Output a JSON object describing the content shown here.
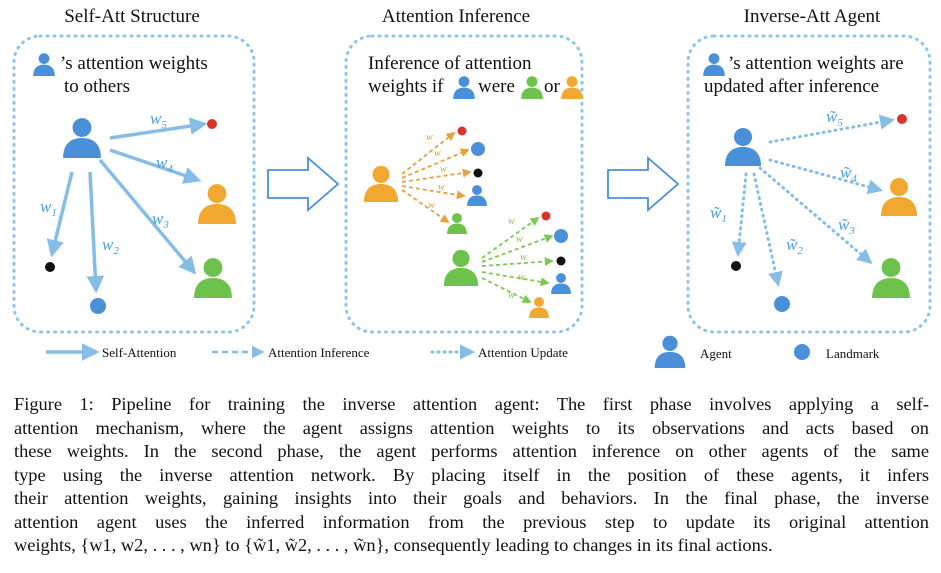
{
  "panels": [
    {
      "title": "Self-Att Structure",
      "desc_lines": [
        "’s attention weights",
        "to others"
      ],
      "weights": [
        "w",
        "w",
        "w",
        "w",
        "w"
      ],
      "subscripts": [
        "5",
        "4",
        "3",
        "1",
        "2"
      ]
    },
    {
      "title": "Attention Inference",
      "desc_line1": "Inference of attention",
      "desc_line2_parts": [
        "weights  if",
        "were",
        "or"
      ]
    },
    {
      "title": "Inverse-Att Agent",
      "desc_lines": [
        "’s attention weights are",
        "updated after inference"
      ],
      "weights": [
        "w̃",
        "w̃",
        "w̃",
        "w̃",
        "w̃"
      ],
      "subscripts": [
        "5",
        "4",
        "3",
        "1",
        "2"
      ]
    }
  ],
  "small_weight_label": "w",
  "legend": {
    "self_attention": "Self-Attention",
    "attention_inference": "Attention Inference",
    "attention_update": "Attention Update",
    "agent": "Agent",
    "landmark": "Landmark"
  },
  "colors": {
    "blue": "#4a90d9",
    "orange": "#f0a830",
    "green": "#6cc24a",
    "red": "#d9342b",
    "black": "#111111",
    "arrow": "#85bde6",
    "dashed_orange": "#e8a040",
    "dashed_green": "#7cc850",
    "border": "#8cc4ea"
  },
  "caption_lines": [
    "Figure 1: Pipeline for training the inverse attention agent: The first phase involves applying a self-",
    "attention mechanism, where the agent assigns attention weights to its observations and acts based on",
    "these weights. In the second phase, the agent performs attention inference on other agents of the same",
    "type using the inverse attention network. By placing itself in the position of these agents, it infers",
    "their attention weights, gaining insights into their goals and behaviors. In the final phase, the inverse",
    "attention agent uses the inferred information from the previous step to update its original attention",
    "weights, {w1, w2, . . . , wn} to {w̃1, w̃2, . . . , w̃n}, consequently leading to changes in its final actions."
  ]
}
